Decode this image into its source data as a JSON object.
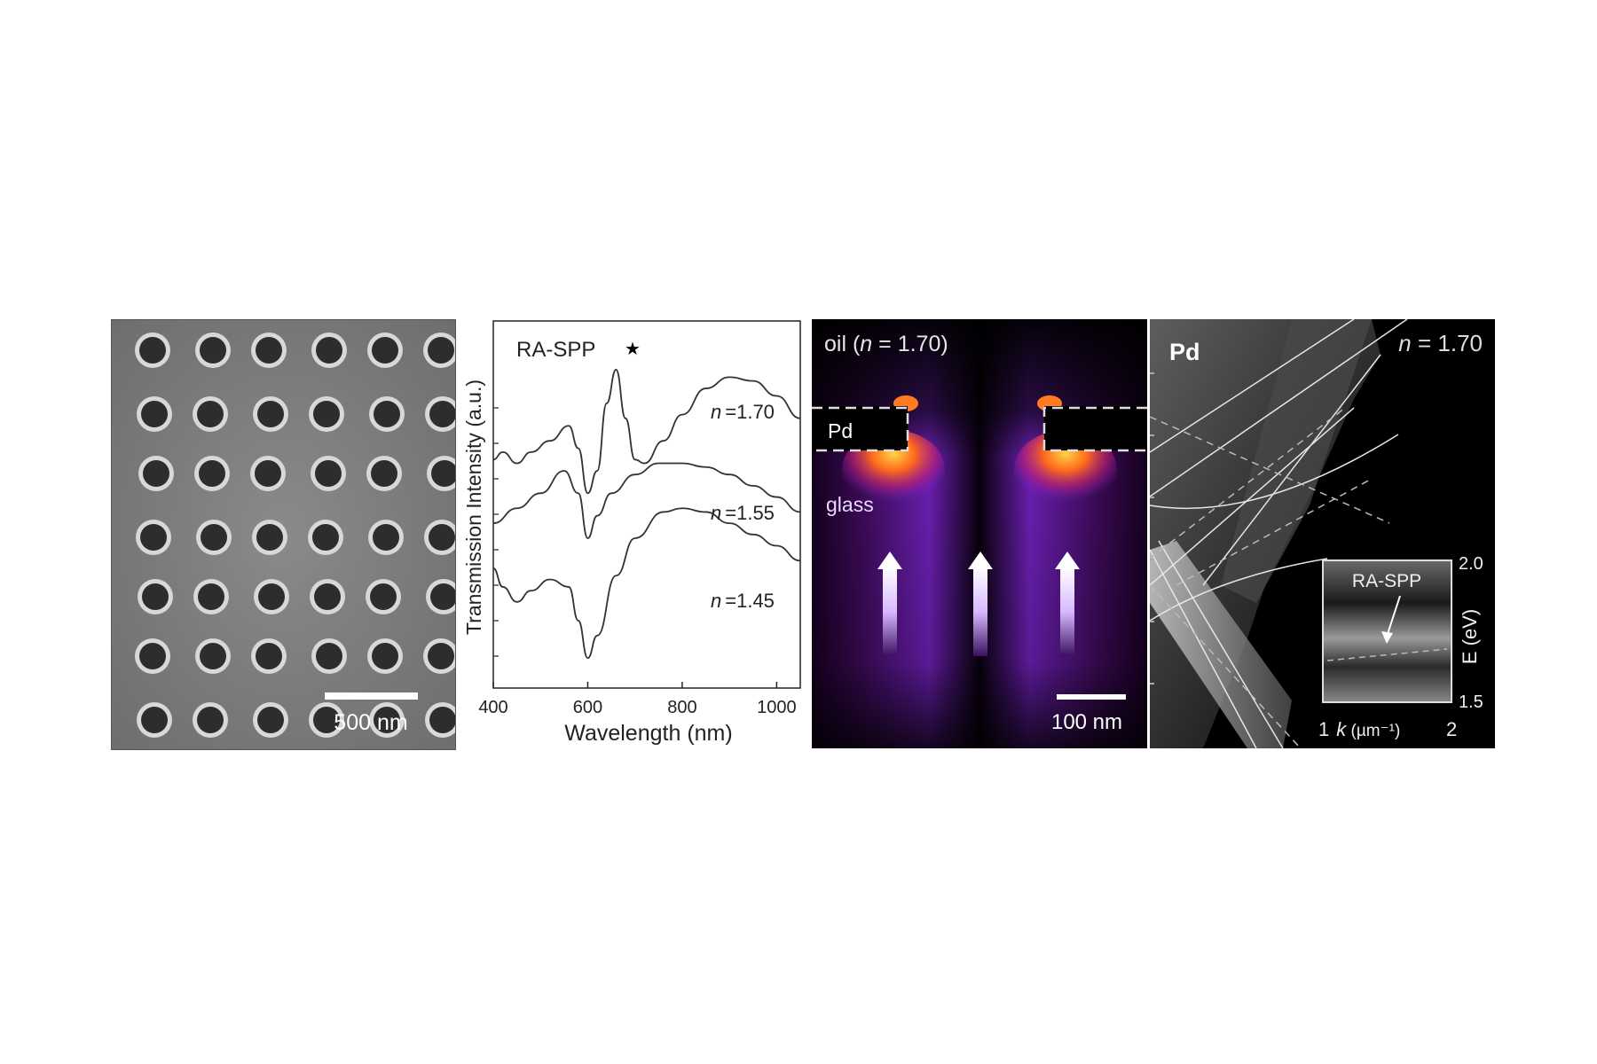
{
  "panel_a": {
    "scale_bar": "500 nm"
  },
  "panel_b": {
    "marker_label": "RA-SPP",
    "marker_symbol": "★",
    "ylabel": "Transmission Intensity (a.u.)",
    "xlabel": "Wavelength (nm)",
    "xticks": [
      "400",
      "600",
      "800",
      "1000"
    ],
    "curve_labels": [
      {
        "italic": "n",
        "value": "=1.70"
      },
      {
        "italic": "n",
        "value": "=1.55"
      },
      {
        "italic": "n",
        "value": "=1.45"
      }
    ]
  },
  "panel_c": {
    "title_prefix": "oil (",
    "title_italic": "n",
    "title_suffix": " = 1.70)",
    "pd_label": "Pd",
    "glass_label": "glass",
    "scale_bar": "100 nm"
  },
  "panel_d": {
    "pd_label": "Pd",
    "n_italic": "n",
    "n_value": " = 1.70",
    "inset_label": "RA-SPP",
    "inset_yticks": [
      "2.0",
      "1.5"
    ],
    "inset_ylabel": "E (eV)",
    "inset_xtick_left": "1",
    "inset_xlabel_italic": "k",
    "inset_xlabel_rest": " (µm⁻¹)",
    "inset_xtick_right": "2"
  },
  "chart_data": [
    {
      "type": "line",
      "xlabel": "Wavelength (nm)",
      "ylabel": "Transmission Intensity (a.u.)",
      "xlim": [
        400,
        1050
      ],
      "annotation": "RA-SPP ★ at ~660 nm",
      "series": [
        {
          "name": "n =1.70",
          "x": [
            400,
            420,
            450,
            480,
            520,
            560,
            580,
            600,
            620,
            640,
            660,
            680,
            700,
            720,
            760,
            800,
            850,
            900,
            950,
            1000,
            1050
          ],
          "y": [
            2.05,
            2.15,
            2.0,
            2.15,
            2.3,
            2.5,
            2.2,
            1.6,
            1.9,
            2.8,
            3.25,
            2.6,
            2.05,
            2.0,
            2.3,
            2.65,
            3.0,
            3.15,
            3.1,
            2.9,
            2.6
          ]
        },
        {
          "name": "n =1.55",
          "x": [
            400,
            450,
            500,
            550,
            580,
            600,
            620,
            650,
            700,
            750,
            800,
            850,
            900,
            950,
            1000,
            1050
          ],
          "y": [
            1.2,
            1.4,
            1.6,
            1.9,
            1.6,
            1.0,
            1.3,
            1.6,
            1.85,
            2.0,
            2.0,
            1.95,
            1.85,
            1.7,
            1.55,
            1.35
          ]
        },
        {
          "name": "n =1.45",
          "x": [
            400,
            420,
            450,
            480,
            520,
            560,
            580,
            600,
            620,
            660,
            700,
            760,
            800,
            850,
            900,
            950,
            1000,
            1050
          ],
          "y": [
            0.6,
            0.35,
            0.15,
            0.3,
            0.45,
            0.35,
            -0.1,
            -0.6,
            -0.3,
            0.5,
            1.0,
            1.35,
            1.4,
            1.35,
            1.2,
            1.05,
            0.9,
            0.7
          ]
        }
      ]
    }
  ]
}
